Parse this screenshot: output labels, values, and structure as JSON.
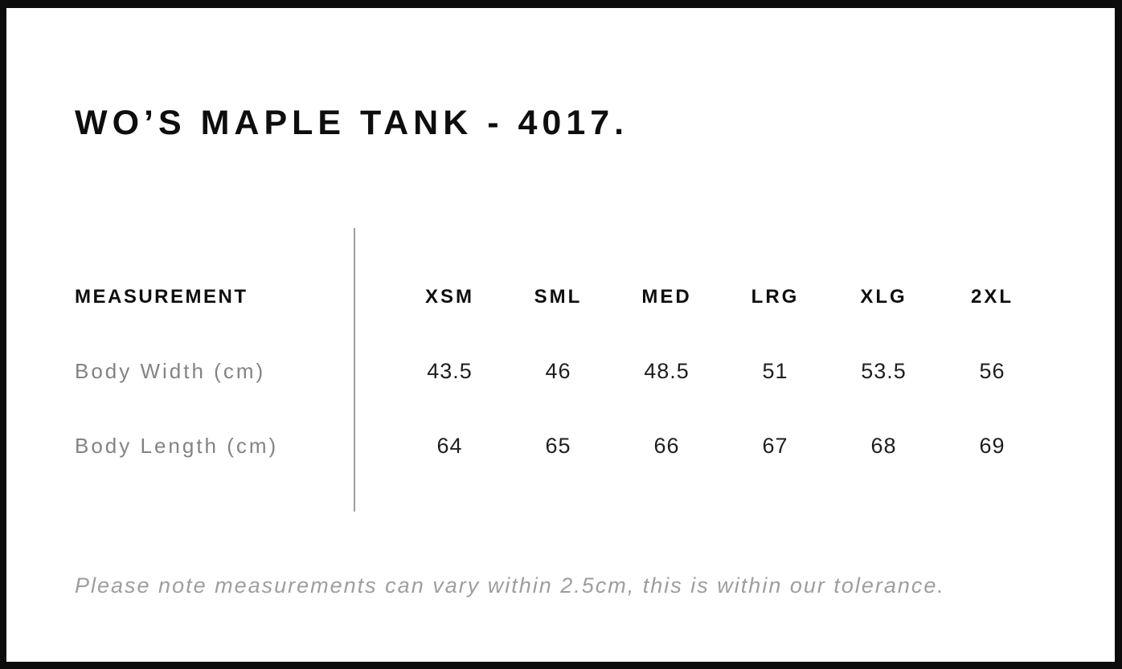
{
  "chart_data": {
    "type": "table",
    "title": "WO’S MAPLE TANK - 4017.",
    "columns": [
      "MEASUREMENT",
      "XSM",
      "SML",
      "MED",
      "LRG",
      "XLG",
      "2XL"
    ],
    "rows": [
      {
        "label": "Body Width (cm)",
        "values": [
          43.5,
          46,
          48.5,
          51,
          53.5,
          56
        ]
      },
      {
        "label": "Body Length (cm)",
        "values": [
          64,
          65,
          66,
          67,
          68,
          69
        ]
      }
    ],
    "note": "Please note measurements can vary within 2.5cm, this is within our tolerance."
  },
  "colors": {
    "frame_border": "#0c0c0c",
    "heading_text": "#0e0e0e",
    "value_text": "#1e1e1e",
    "label_gray": "#838383",
    "note_gray": "#9e9e9e",
    "divider_gray": "#9f9f9f",
    "background": "#ffffff"
  }
}
